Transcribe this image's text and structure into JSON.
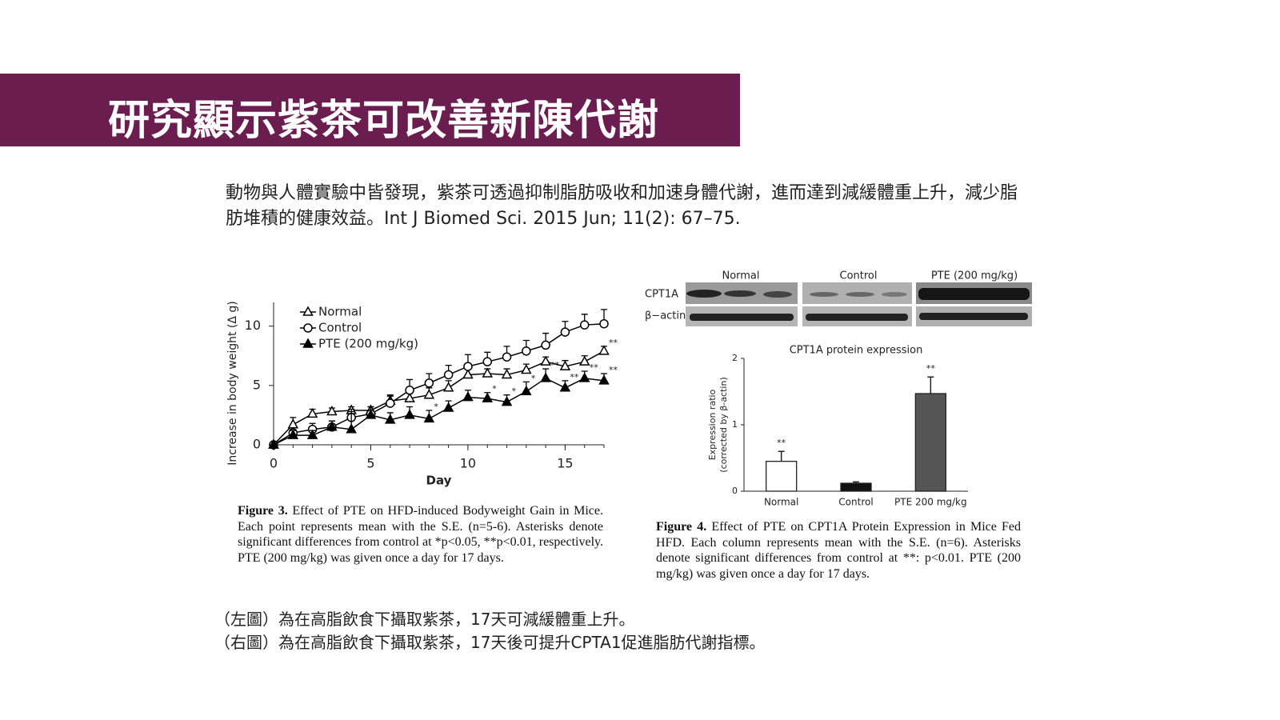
{
  "header": {
    "title": "研究顯示紫茶可改善新陳代謝"
  },
  "intro": "動物與人體實驗中皆發現，紫茶可透過抑制脂肪吸收和加速身體代謝，進而達到減緩體重上升，減少脂肪堆積的健康效益。Int J Biomed Sci. 2015 Jun; 11(2): 67–75.",
  "chart_data": [
    {
      "type": "line",
      "xlabel": "Day",
      "ylabel": "Increase in body weight (Δ g)",
      "x": [
        0,
        1,
        2,
        3,
        4,
        5,
        6,
        7,
        8,
        9,
        10,
        11,
        12,
        13,
        14,
        15,
        16,
        17
      ],
      "xlim": [
        0,
        17
      ],
      "xticks": [
        0,
        5,
        10,
        15
      ],
      "ylim": [
        0,
        12
      ],
      "yticks": [
        0,
        5,
        10
      ],
      "legend": "upper left",
      "series": [
        {
          "name": "Normal",
          "color": "#000000",
          "marker": "triangle",
          "filled": false,
          "values": [
            0,
            1.7,
            2.6,
            2.8,
            2.9,
            2.9,
            3.7,
            3.9,
            4.2,
            4.8,
            5.9,
            6.0,
            5.9,
            6.3,
            7.0,
            6.6,
            7.0,
            7.9
          ],
          "errors": [
            0,
            0.6,
            0.4,
            0.3,
            0.3,
            0.3,
            0.4,
            0.5,
            0.6,
            0.6,
            0.5,
            0.4,
            0.5,
            0.5,
            0.4,
            0.5,
            0.5,
            0.4
          ],
          "significance": [
            null,
            null,
            null,
            null,
            null,
            null,
            null,
            null,
            null,
            null,
            null,
            null,
            null,
            null,
            null,
            null,
            null,
            "**"
          ]
        },
        {
          "name": "Control",
          "color": "#000000",
          "marker": "circle",
          "filled": false,
          "values": [
            0,
            1.0,
            1.3,
            1.5,
            2.3,
            2.6,
            3.5,
            4.6,
            5.2,
            5.9,
            6.6,
            7.0,
            7.4,
            7.9,
            8.4,
            9.5,
            10.1,
            10.2
          ],
          "errors": [
            0,
            0.3,
            0.5,
            0.5,
            0.7,
            0.6,
            0.7,
            0.9,
            0.8,
            0.8,
            1.0,
            0.8,
            0.9,
            0.9,
            1.0,
            0.9,
            0.9,
            1.2
          ],
          "significance": [
            null,
            null,
            null,
            null,
            null,
            null,
            null,
            null,
            null,
            null,
            null,
            null,
            null,
            null,
            null,
            null,
            null,
            null
          ]
        },
        {
          "name": "PTE (200 mg/kg)",
          "color": "#000000",
          "marker": "triangle",
          "filled": true,
          "values": [
            0,
            0.8,
            0.8,
            1.5,
            1.3,
            2.5,
            2.1,
            2.5,
            2.2,
            3.1,
            4.0,
            3.9,
            3.6,
            4.5,
            5.6,
            4.8,
            5.6,
            5.4
          ],
          "errors": [
            0,
            0.4,
            0.4,
            0.5,
            1.5,
            0.7,
            0.6,
            0.7,
            0.7,
            0.6,
            0.6,
            0.5,
            0.6,
            0.8,
            0.8,
            0.6,
            0.6,
            0.6
          ],
          "significance": [
            null,
            null,
            null,
            null,
            null,
            null,
            null,
            null,
            "*",
            null,
            null,
            "*",
            "*",
            "*",
            "**",
            "**",
            "**",
            "**"
          ]
        }
      ]
    },
    {
      "type": "bar",
      "title": "CPT1A protein expression",
      "ylabel": [
        "Expression ratio",
        "(corrected by β-actin)"
      ],
      "categories": [
        "Normal",
        "Control",
        "PTE 200 mg/kg"
      ],
      "values": [
        0.45,
        0.12,
        1.47
      ],
      "errors": [
        0.15,
        0.02,
        0.25
      ],
      "colors": [
        "#ffffff",
        "#111111",
        "#555555"
      ],
      "significance": [
        "**",
        null,
        "**"
      ],
      "ylim": [
        0,
        2
      ],
      "yticks": [
        0,
        1,
        2
      ]
    }
  ],
  "blot": {
    "columns": [
      "Normal",
      "Control",
      "PTE (200 mg/kg)"
    ],
    "rows": [
      "CPT1A",
      "β−actin"
    ]
  },
  "captions": [
    {
      "label": "Figure 3.",
      "text": " Effect of PTE on HFD-induced Bodyweight Gain in Mice. Each point represents mean with the S.E. (n=5-6). Asterisks denote significant differences from control at *p<0.05, **p<0.01, respectively. PTE (200 mg/kg) was given once a day for 17 days."
    },
    {
      "label": "Figure 4.",
      "text": " Effect of PTE on CPT1A Protein Expression in Mice Fed HFD. Each column represents mean with the S.E. (n=6). Asterisks denote significant differences from control at **: p<0.01. PTE (200 mg/kg) was given once a day for 17 days."
    }
  ],
  "notes": [
    "（左圖）為在高脂飲食下攝取紫茶，17天可減緩體重上升。",
    "（右圖）為在高脂飲食下攝取紫茶，17天後可提升CPTA1促進脂肪代謝指標。"
  ]
}
